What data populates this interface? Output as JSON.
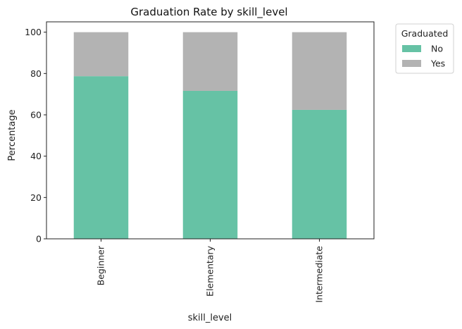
{
  "chart_data": {
    "type": "bar",
    "stacked": true,
    "title": "Graduation Rate by skill_level",
    "xlabel": "skill_level",
    "ylabel": "Percentage",
    "categories": [
      "Beginner",
      "Elementary",
      "Intermediate"
    ],
    "series": [
      {
        "name": "No",
        "values": [
          78.7,
          71.6,
          62.4
        ],
        "color": "#66c2a5"
      },
      {
        "name": "Yes",
        "values": [
          21.3,
          28.4,
          37.6
        ],
        "color": "#b3b3b3"
      }
    ],
    "ylim": [
      0,
      105
    ],
    "yticks": [
      0,
      20,
      40,
      60,
      80,
      100
    ],
    "grid": false,
    "legend": {
      "title": "Graduated",
      "placement": "outside-top-right"
    }
  }
}
